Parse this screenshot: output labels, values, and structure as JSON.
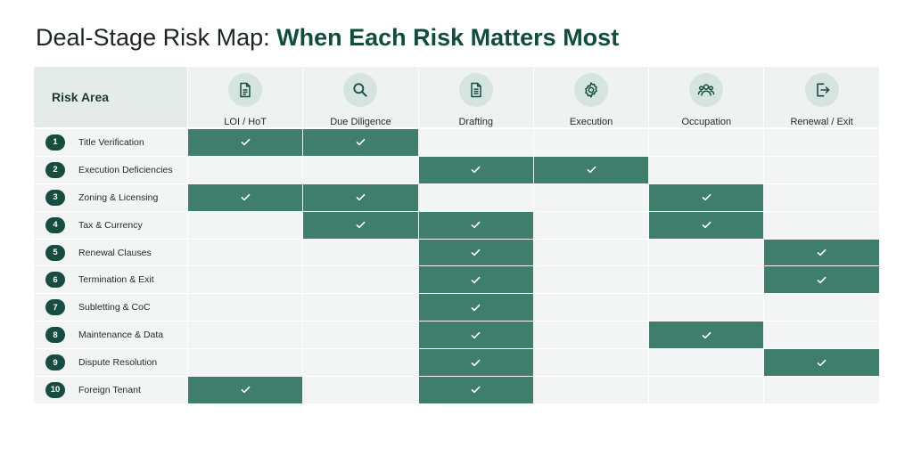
{
  "title": {
    "plain": "Deal-Stage Risk Map: ",
    "accent": "When Each Risk Matters Most"
  },
  "header": {
    "corner_label": "Risk Area",
    "stages": [
      {
        "label": "LOI / HoT",
        "icon": "document-icon"
      },
      {
        "label": "Due Diligence",
        "icon": "magnifier-icon"
      },
      {
        "label": "Drafting",
        "icon": "document-lines-icon"
      },
      {
        "label": "Execution",
        "icon": "gear-icon"
      },
      {
        "label": "Occupation",
        "icon": "people-icon"
      },
      {
        "label": "Renewal / Exit",
        "icon": "exit-door-icon"
      }
    ]
  },
  "rows": [
    {
      "num": "1",
      "label": "Title Verification",
      "marks": [
        true,
        true,
        false,
        false,
        false,
        false
      ]
    },
    {
      "num": "2",
      "label": "Execution Deficiencies",
      "marks": [
        false,
        false,
        true,
        true,
        false,
        false
      ]
    },
    {
      "num": "3",
      "label": "Zoning & Licensing",
      "marks": [
        true,
        true,
        false,
        false,
        true,
        false
      ]
    },
    {
      "num": "4",
      "label": "Tax & Currency",
      "marks": [
        false,
        true,
        true,
        false,
        true,
        false
      ]
    },
    {
      "num": "5",
      "label": "Renewal Clauses",
      "marks": [
        false,
        false,
        true,
        false,
        false,
        true
      ]
    },
    {
      "num": "6",
      "label": "Termination & Exit",
      "marks": [
        false,
        false,
        true,
        false,
        false,
        true
      ]
    },
    {
      "num": "7",
      "label": "Subletting & CoC",
      "marks": [
        false,
        false,
        true,
        false,
        false,
        false
      ]
    },
    {
      "num": "8",
      "label": "Maintenance & Data",
      "marks": [
        false,
        false,
        true,
        false,
        true,
        false
      ]
    },
    {
      "num": "9",
      "label": "Dispute Resolution",
      "marks": [
        false,
        false,
        true,
        false,
        false,
        true
      ]
    },
    {
      "num": "10",
      "label": "Foreign Tenant",
      "marks": [
        true,
        false,
        true,
        false,
        false,
        false
      ]
    }
  ],
  "colors": {
    "active_cell": "#3f7d6c",
    "inactive_cell": "#f2f5f4",
    "badge": "#174d40",
    "title_accent": "#0f4d3d",
    "icon_circle": "#d5e4df"
  }
}
